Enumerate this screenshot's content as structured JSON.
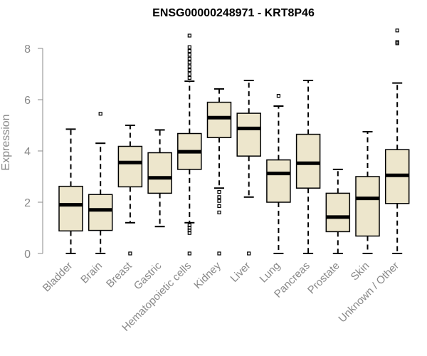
{
  "colors": {
    "box_fill": "#ede6cc",
    "stroke": "#000000",
    "axis": "#888888"
  },
  "chart_data": {
    "type": "boxplot",
    "title": "ENSG00000248971 - KRT8P46",
    "xlabel": "",
    "ylabel": "Expression",
    "ylim": [
      0,
      8.7
    ],
    "yticks": [
      "0",
      "2",
      "4",
      "6",
      "8"
    ],
    "categories": [
      "Bladder",
      "Brain",
      "Breast",
      "Gastric",
      "Hematopoietic cells",
      "Kidney",
      "Liver",
      "Lung",
      "Pancreas",
      "Prostate",
      "Skin",
      "Unknown / Other"
    ],
    "boxes": [
      {
        "whislo": 0.0,
        "q1": 0.88,
        "med": 1.9,
        "q3": 2.62,
        "whishi": 4.85,
        "fliers": []
      },
      {
        "whislo": 0.0,
        "q1": 0.9,
        "med": 1.7,
        "q3": 2.3,
        "whishi": 4.3,
        "fliers": [
          5.45
        ]
      },
      {
        "whislo": 1.2,
        "q1": 2.6,
        "med": 3.55,
        "q3": 4.18,
        "whishi": 5.0,
        "fliers": [
          0.0
        ]
      },
      {
        "whislo": 1.05,
        "q1": 2.35,
        "med": 2.95,
        "q3": 3.93,
        "whishi": 4.82,
        "fliers": []
      },
      {
        "whislo": 1.2,
        "q1": 3.28,
        "med": 3.97,
        "q3": 4.68,
        "whishi": 6.72,
        "fliers": [
          0.0,
          0.8,
          0.9,
          1.0,
          1.1,
          6.85,
          7.0,
          7.15,
          7.3,
          7.45,
          7.6,
          7.75,
          7.9,
          8.05,
          8.5
        ]
      },
      {
        "whislo": 2.55,
        "q1": 4.52,
        "med": 5.3,
        "q3": 5.9,
        "whishi": 6.42,
        "fliers": [
          0.0,
          1.6,
          1.85,
          2.05,
          2.2,
          2.4
        ]
      },
      {
        "whislo": 2.2,
        "q1": 3.8,
        "med": 4.88,
        "q3": 5.47,
        "whishi": 6.75,
        "fliers": [
          0.0
        ]
      },
      {
        "whislo": 0.0,
        "q1": 2.0,
        "med": 3.12,
        "q3": 3.65,
        "whishi": 5.75,
        "fliers": [
          6.15
        ]
      },
      {
        "whislo": 0.0,
        "q1": 2.55,
        "med": 3.52,
        "q3": 4.65,
        "whishi": 6.75,
        "fliers": []
      },
      {
        "whislo": 0.0,
        "q1": 0.85,
        "med": 1.42,
        "q3": 2.35,
        "whishi": 3.28,
        "fliers": []
      },
      {
        "whislo": 0.0,
        "q1": 0.68,
        "med": 2.15,
        "q3": 3.0,
        "whishi": 4.75,
        "fliers": []
      },
      {
        "whislo": 0.0,
        "q1": 1.95,
        "med": 3.05,
        "q3": 4.05,
        "whishi": 6.65,
        "fliers": [
          8.2,
          8.25,
          8.7
        ]
      }
    ]
  }
}
